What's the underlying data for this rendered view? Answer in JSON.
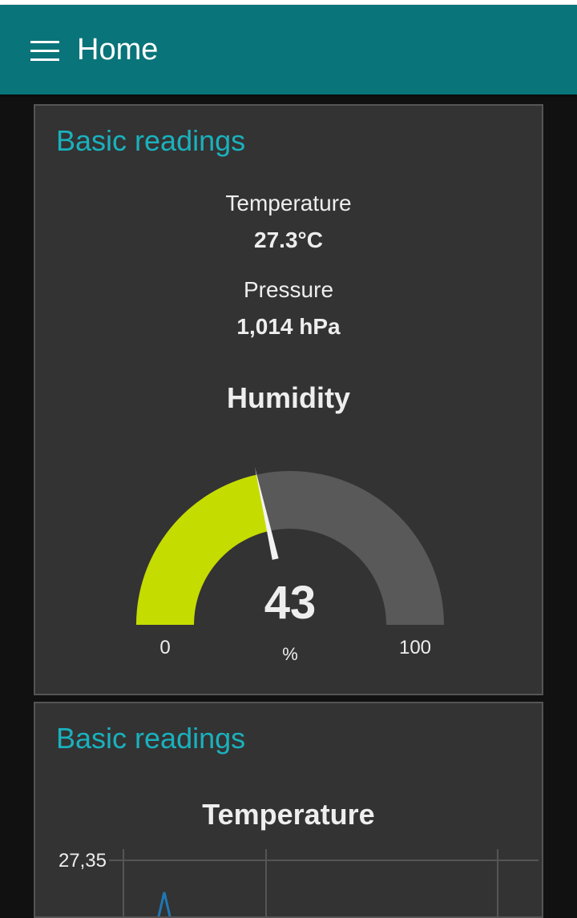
{
  "header": {
    "title": "Home",
    "background": "#097479"
  },
  "cards": [
    {
      "title": "Basic readings",
      "readings": [
        {
          "label": "Temperature",
          "value": "27.3°C"
        },
        {
          "label": "Pressure",
          "value": "1,014 hPa"
        }
      ],
      "gauge": {
        "title": "Humidity",
        "value": 43,
        "value_text": "43",
        "unit": "%",
        "min": 0,
        "max": 100,
        "min_label": "0",
        "max_label": "100",
        "fill_color": "#c5dc00",
        "track_color": "#595959"
      }
    },
    {
      "title": "Basic readings",
      "chart": {
        "title": "Temperature",
        "y_tick_label": "27,35"
      }
    }
  ],
  "chart_data": {
    "type": "line",
    "title": "Temperature",
    "y_ticks": [
      "27,35"
    ],
    "line_color": "#1f77b4",
    "grid": true
  }
}
